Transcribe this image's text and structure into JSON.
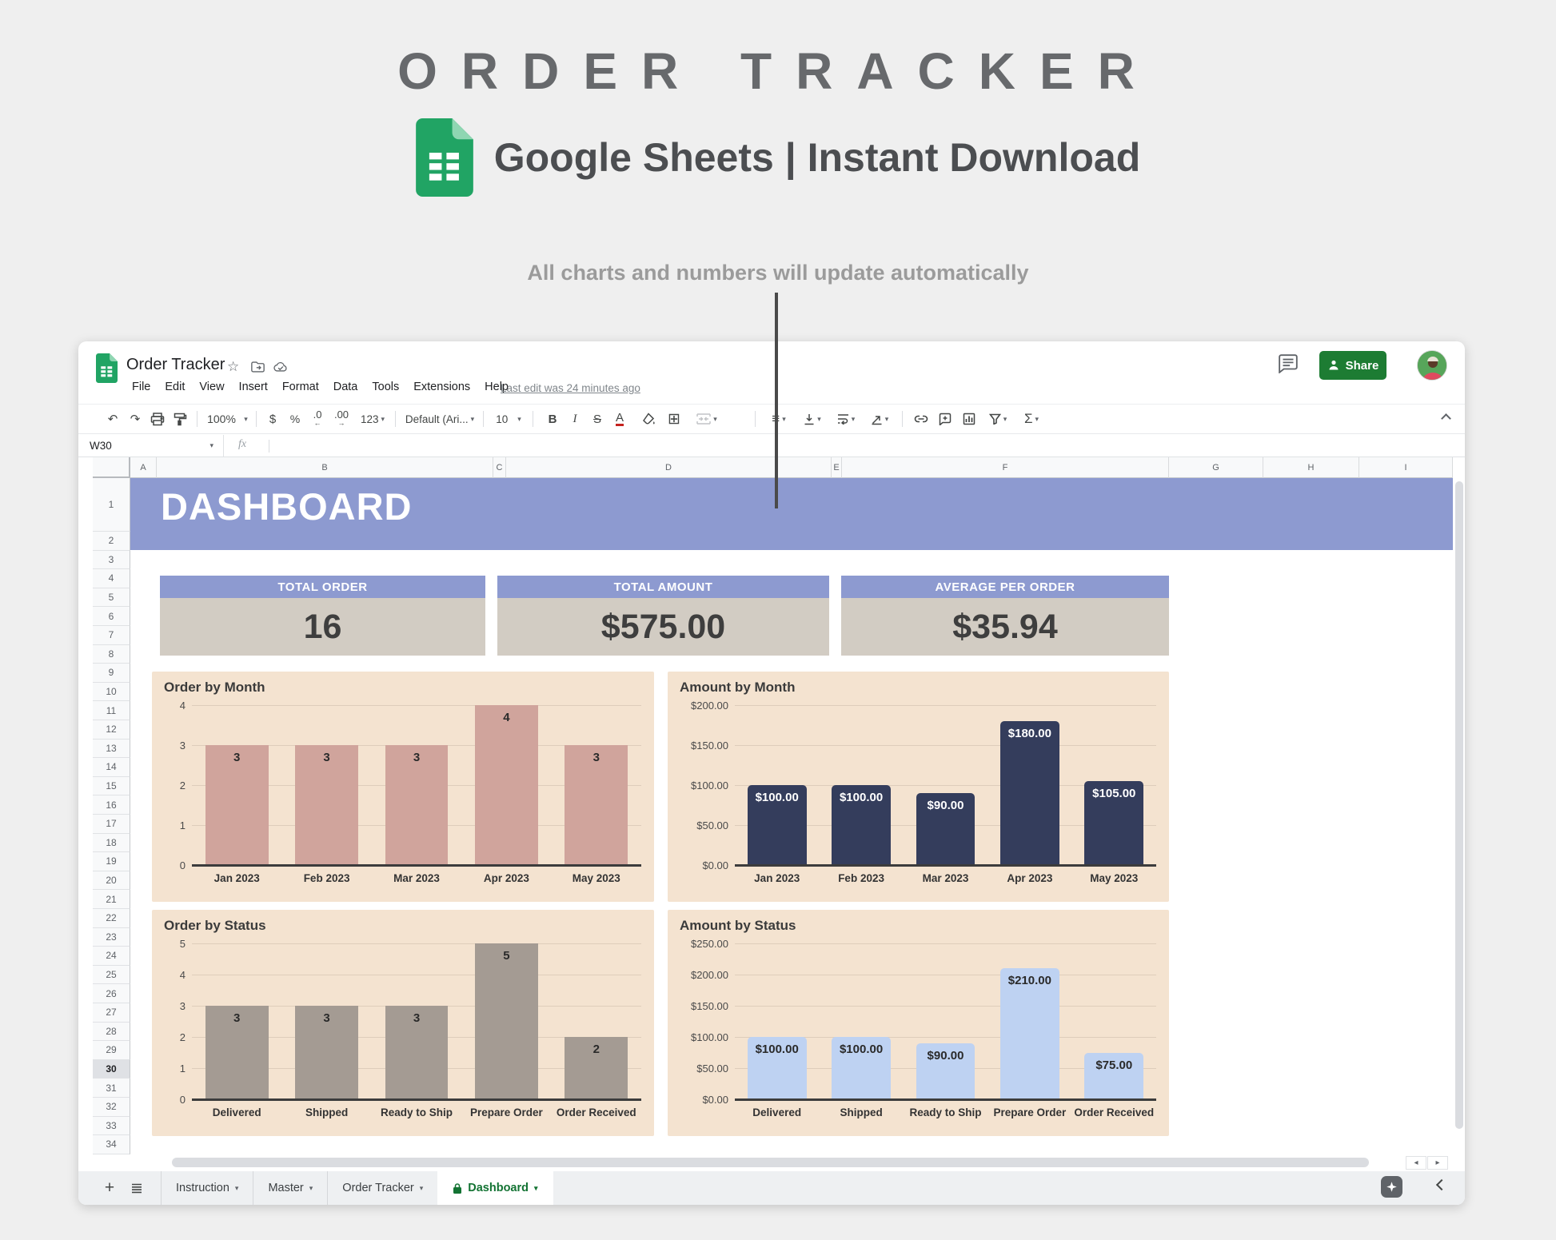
{
  "page": {
    "title": "ORDER TRACKER",
    "subtitle": "Google Sheets | Instant Download",
    "annotation": "All charts and numbers will update automatically"
  },
  "window": {
    "doc_title": "Order Tracker",
    "menu_items": [
      "File",
      "Edit",
      "View",
      "Insert",
      "Format",
      "Data",
      "Tools",
      "Extensions",
      "Help"
    ],
    "last_edit": "Last edit was 24 minutes ago",
    "share_label": "Share"
  },
  "toolbar": {
    "undo": "↶",
    "redo": "↷",
    "zoom_level": "100%",
    "currency": "$",
    "percent": "%",
    "decimal_decrease": ".0",
    "decimal_increase": ".00",
    "number_format": "123",
    "font_name": "Default (Ari...",
    "font_size": "10",
    "bold": "B",
    "italic": "I",
    "strikethrough": "S",
    "text_color": "A",
    "borders": "⊞",
    "align": "≡",
    "sigma": "Σ",
    "caret": "▾"
  },
  "formula_bar": {
    "cell_reference": "W30",
    "fx_label": "fx"
  },
  "grid": {
    "column_headers": [
      "A",
      "B",
      "C",
      "D",
      "E",
      "F",
      "G",
      "H",
      "I"
    ],
    "row_count": 34,
    "selected_row": 30,
    "banner": "DASHBOARD"
  },
  "kpis": [
    {
      "label": "TOTAL ORDER",
      "value": "16"
    },
    {
      "label": "TOTAL AMOUNT",
      "value": "$575.00"
    },
    {
      "label": "AVERAGE PER ORDER",
      "value": "$35.94"
    }
  ],
  "sheet_tabs": [
    {
      "label": "Instruction",
      "active": false,
      "locked": false
    },
    {
      "label": "Master",
      "active": false,
      "locked": false
    },
    {
      "label": "Order Tracker",
      "active": false,
      "locked": false
    },
    {
      "label": "Dashboard",
      "active": true,
      "locked": true
    }
  ],
  "tab_icons": {
    "add": "+",
    "scroll_left": "◂",
    "scroll_right": "▸"
  },
  "header_icons": {
    "star": "☆"
  },
  "colors": {
    "banner_purple": "#8d9ad0",
    "kpi_body_tan": "#d2ccc3",
    "panel_peach": "#f4e3d0",
    "rose_bar": "#d0a49c",
    "navy_bar": "#343d5c",
    "gray_bar": "#a49b93",
    "blue_bar": "#bed2f2",
    "share_green": "#1d7c33",
    "sheets_green": "#21a464",
    "active_tab_green": "#137333"
  },
  "chart_data": [
    {
      "type": "bar",
      "title": "Order by Month",
      "categories": [
        "Jan 2023",
        "Feb 2023",
        "Mar 2023",
        "Apr 2023",
        "May 2023"
      ],
      "values": [
        3,
        3,
        3,
        4,
        3
      ],
      "value_labels": [
        "3",
        "3",
        "3",
        "4",
        "3"
      ],
      "ylim": [
        0,
        4
      ],
      "ytick_labels": [
        "0",
        "1",
        "2",
        "3",
        "4"
      ],
      "bar_color": "#d0a49c",
      "label_color": "#2a2a2a",
      "grid": true,
      "legend": "none"
    },
    {
      "type": "bar",
      "title": "Amount by Month",
      "categories": [
        "Jan 2023",
        "Feb 2023",
        "Mar 2023",
        "Apr 2023",
        "May 2023"
      ],
      "values": [
        100,
        100,
        90,
        180,
        105
      ],
      "value_labels": [
        "$100.00",
        "$100.00",
        "$90.00",
        "$180.00",
        "$105.00"
      ],
      "ylim": [
        0,
        200
      ],
      "ytick_labels": [
        "$0.00",
        "$50.00",
        "$100.00",
        "$150.00",
        "$200.00"
      ],
      "bar_color": "#343d5c",
      "label_color": "#ffffff",
      "grid": true,
      "legend": "none"
    },
    {
      "type": "bar",
      "title": "Order by Status",
      "categories": [
        "Delivered",
        "Shipped",
        "Ready to Ship",
        "Prepare Order",
        "Order Received"
      ],
      "values": [
        3,
        3,
        3,
        5,
        2
      ],
      "value_labels": [
        "3",
        "3",
        "3",
        "5",
        "2"
      ],
      "ylim": [
        0,
        5
      ],
      "ytick_labels": [
        "0",
        "1",
        "2",
        "3",
        "4",
        "5"
      ],
      "bar_color": "#a49b93",
      "label_color": "#2a2a2a",
      "grid": true,
      "legend": "none"
    },
    {
      "type": "bar",
      "title": "Amount by Status",
      "categories": [
        "Delivered",
        "Shipped",
        "Ready to Ship",
        "Prepare Order",
        "Order Received"
      ],
      "values": [
        100,
        100,
        90,
        210,
        75
      ],
      "value_labels": [
        "$100.00",
        "$100.00",
        "$90.00",
        "$210.00",
        "$75.00"
      ],
      "ylim": [
        0,
        250
      ],
      "ytick_labels": [
        "$0.00",
        "$50.00",
        "$100.00",
        "$150.00",
        "$200.00",
        "$250.00"
      ],
      "bar_color": "#bed2f2",
      "label_color": "#2a2a2a",
      "grid": true,
      "legend": "none"
    }
  ]
}
